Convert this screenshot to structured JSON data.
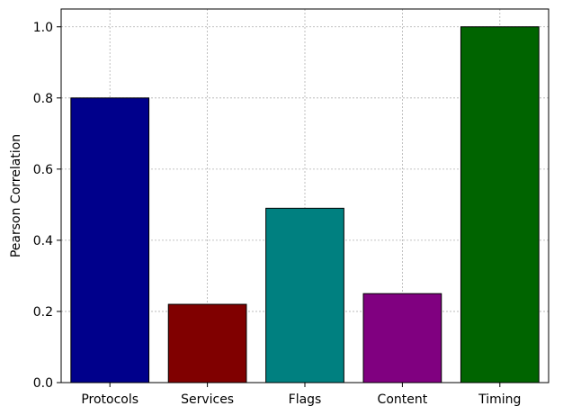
{
  "chart_data": {
    "type": "bar",
    "categories": [
      "Protocols",
      "Services",
      "Flags",
      "Content",
      "Timing"
    ],
    "values": [
      0.8,
      0.22,
      0.49,
      0.25,
      1.0
    ],
    "colors": [
      "#00008b",
      "#800000",
      "#008080",
      "#800080",
      "#006400"
    ],
    "title": "",
    "xlabel": "",
    "ylabel": "Pearson Correlation",
    "ylim": [
      0,
      1.05
    ],
    "yticks": [
      0.0,
      0.2,
      0.4,
      0.6,
      0.8,
      1.0
    ],
    "ytick_labels": [
      "0.0",
      "0.2",
      "0.4",
      "0.6",
      "0.8",
      "1.0"
    ],
    "grid": true
  }
}
